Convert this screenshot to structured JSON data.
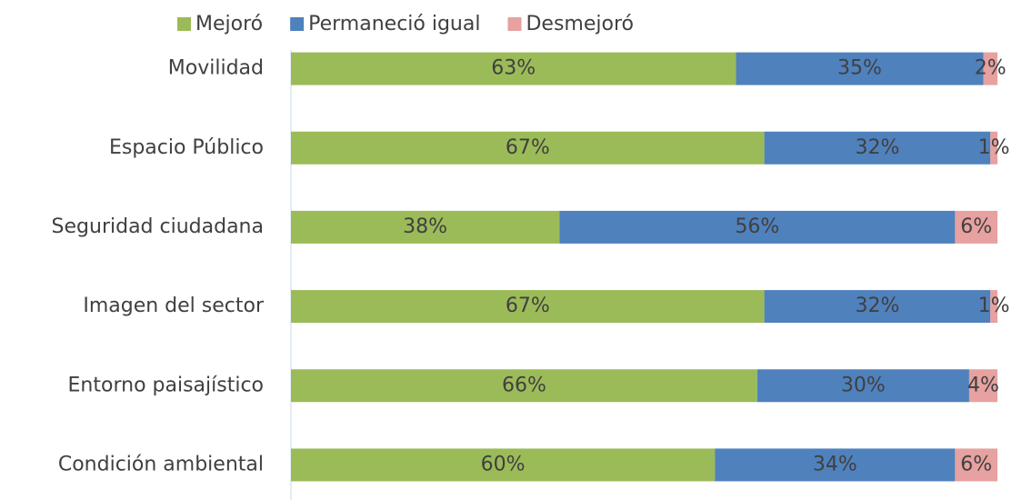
{
  "chart_data": {
    "type": "stacked-bar-horizontal",
    "categories": [
      "Movilidad",
      "Espacio Público",
      "Seguridad ciudadana",
      "Imagen del sector",
      "Entorno paisajístico",
      "Condición ambiental"
    ],
    "series": [
      {
        "name": "Mejoró",
        "color": "#9bbb59",
        "values": [
          63,
          67,
          38,
          67,
          66,
          60
        ],
        "value_labels": [
          "63%",
          "67%",
          "38%",
          "67%",
          "66%",
          "60%"
        ]
      },
      {
        "name": "Permaneció igual",
        "color": "#4f81bd",
        "values": [
          35,
          32,
          56,
          32,
          30,
          34
        ],
        "value_labels": [
          "35%",
          "32%",
          "56%",
          "32%",
          "30%",
          "34%"
        ]
      },
      {
        "name": "Desmejoró",
        "color": "#e6a1a0",
        "values": [
          2,
          1,
          6,
          1,
          4,
          6
        ],
        "value_labels": [
          "2%",
          "1%",
          "6%",
          "1%",
          "4%",
          "6%"
        ]
      }
    ],
    "xlim": [
      0,
      100
    ],
    "legend": "top"
  }
}
